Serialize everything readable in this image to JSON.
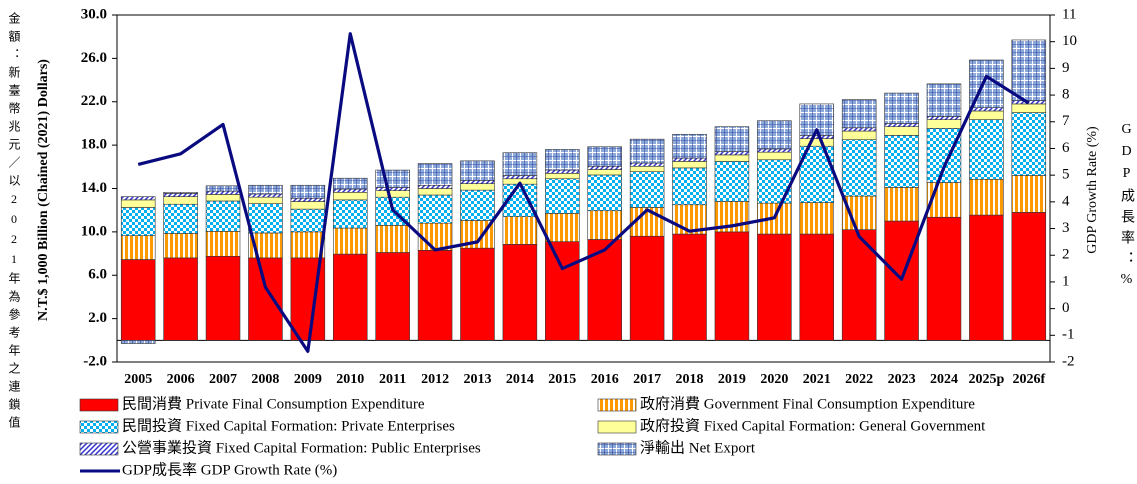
{
  "chart_data": {
    "type": "bar",
    "stacked": true,
    "ylabel_zh": "金額：新臺幣兆元／以2021年為參考年之連鎖值",
    "ylabel": "N.T.$ 1,000 Billion (Chained (2021) Dollars)",
    "y2label": "GDP Growth Rate (%)",
    "y2label_zh": "GDP成長率：%",
    "categories": [
      "2005",
      "2006",
      "2007",
      "2008",
      "2009",
      "2010",
      "2011",
      "2012",
      "2013",
      "2014",
      "2015",
      "2016",
      "2017",
      "2018",
      "2019",
      "2020",
      "2021",
      "2022",
      "2023",
      "2024",
      "2025p",
      "2026f"
    ],
    "ylim": [
      -2,
      30
    ],
    "yticks": [
      {
        "value": -2,
        "label": "-2.0"
      },
      {
        "value": 2,
        "label": "2.0"
      },
      {
        "value": 6,
        "label": "6.0"
      },
      {
        "value": 10,
        "label": "10.0"
      },
      {
        "value": 14,
        "label": "14.0"
      },
      {
        "value": 18,
        "label": "18.0"
      },
      {
        "value": 22,
        "label": "22.0"
      },
      {
        "value": 26,
        "label": "26.0"
      },
      {
        "value": 30,
        "label": "30.0"
      }
    ],
    "y2lim": [
      -2,
      11
    ],
    "y2ticks": [
      -2,
      -1,
      0,
      1,
      2,
      3,
      4,
      5,
      6,
      7,
      8,
      9,
      10,
      11
    ],
    "series": [
      {
        "name": "民間消費 Private Final Consumption Expenditure",
        "color": "#ff0000",
        "values": [
          7.45,
          7.6,
          7.75,
          7.6,
          7.6,
          7.95,
          8.1,
          8.3,
          8.5,
          8.85,
          9.1,
          9.3,
          9.6,
          9.8,
          10.0,
          9.8,
          9.8,
          10.2,
          11.0,
          11.35,
          11.55,
          11.8
        ]
      },
      {
        "name": "政府消費 Government Final Consumption Expenditure",
        "color": "#ff9900",
        "values": [
          2.2,
          2.25,
          2.3,
          2.3,
          2.4,
          2.4,
          2.5,
          2.5,
          2.55,
          2.55,
          2.6,
          2.65,
          2.65,
          2.7,
          2.8,
          2.85,
          2.9,
          3.1,
          3.1,
          3.2,
          3.3,
          3.4
        ]
      },
      {
        "name": "民間投資 Fixed Capital Formation: Private Enterprises",
        "color": "#00b0f0",
        "values": [
          2.6,
          2.7,
          2.8,
          2.7,
          2.1,
          2.6,
          2.6,
          2.6,
          2.8,
          3.0,
          3.2,
          3.3,
          3.3,
          3.4,
          3.7,
          4.0,
          5.2,
          5.2,
          4.8,
          5.0,
          5.5,
          5.8
        ]
      },
      {
        "name": "政府投資 Fixed Capital Formation: General Government",
        "color": "#ffff99",
        "values": [
          0.7,
          0.7,
          0.6,
          0.6,
          0.7,
          0.7,
          0.6,
          0.6,
          0.6,
          0.5,
          0.5,
          0.5,
          0.5,
          0.6,
          0.6,
          0.7,
          0.7,
          0.8,
          0.8,
          0.8,
          0.8,
          0.8
        ]
      },
      {
        "name": "公營事業投資 Fixed Capital Formation: Public Enterprises",
        "color": "#3333cc",
        "values": [
          0.3,
          0.3,
          0.3,
          0.3,
          0.3,
          0.3,
          0.3,
          0.3,
          0.3,
          0.3,
          0.3,
          0.3,
          0.3,
          0.3,
          0.3,
          0.3,
          0.3,
          0.3,
          0.3,
          0.3,
          0.3,
          0.3
        ]
      },
      {
        "name": "淨輸出 Net Export",
        "color": "#8ea9db",
        "values": [
          -0.3,
          0.1,
          0.5,
          0.8,
          1.2,
          1.0,
          1.6,
          2.0,
          1.8,
          2.1,
          1.9,
          1.8,
          2.2,
          2.2,
          2.3,
          2.6,
          2.9,
          2.6,
          2.8,
          3.0,
          4.4,
          5.6
        ]
      },
      {
        "name": "GDP成長率 GDP Growth Rate (%)",
        "color": "#0a0a80",
        "axis": "y2",
        "values": [
          5.4,
          5.8,
          6.9,
          0.8,
          -1.6,
          10.3,
          3.7,
          2.2,
          2.5,
          4.7,
          1.5,
          2.2,
          3.7,
          2.9,
          3.1,
          3.4,
          6.7,
          2.7,
          1.1,
          5.3,
          8.7,
          7.7
        ]
      }
    ]
  }
}
